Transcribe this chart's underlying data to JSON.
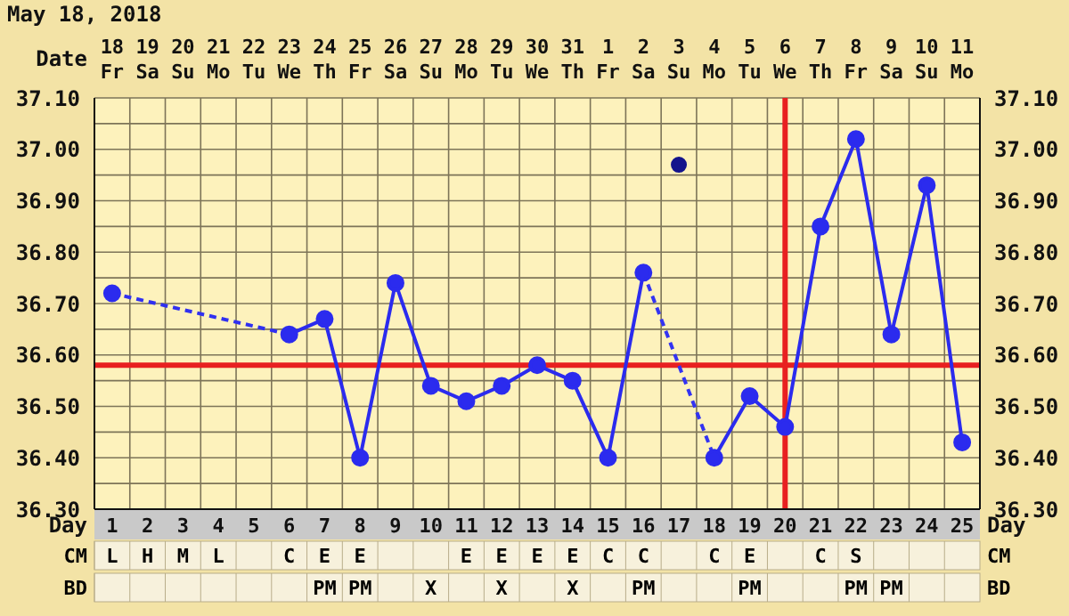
{
  "chart_data": {
    "type": "line",
    "title": "May 18, 2018",
    "xlabel": "Date",
    "x2label": "Day",
    "categories": [
      "18 Fr",
      "19 Sa",
      "20 Su",
      "21 Mo",
      "22 Tu",
      "23 We",
      "24 Th",
      "25 Fr",
      "26 Sa",
      "27 Su",
      "28 Mo",
      "29 Tu",
      "30 We",
      "31 Th",
      "1 Fr",
      "2 Sa",
      "3 Su",
      "4 Mo",
      "5 Tu",
      "6 We",
      "7 Th",
      "8 Fr",
      "9 Sa",
      "10 Su",
      "11 Mo"
    ],
    "series": [
      {
        "color": "#2b2bee",
        "values": [
          36.72,
          null,
          null,
          null,
          null,
          36.64,
          36.67,
          36.4,
          36.74,
          36.54,
          36.51,
          36.54,
          36.58,
          36.55,
          36.4,
          36.76,
          null,
          36.4,
          36.52,
          36.46,
          36.85,
          37.02,
          36.64,
          36.93,
          36.43
        ]
      },
      {
        "color": "#3030f0",
        "line_style": "dashed",
        "marker": "none",
        "x": [
          "18 Fr",
          "23 We"
        ],
        "values": [
          36.72,
          36.64
        ]
      },
      {
        "color": "#3333f2",
        "line_style": "dashed",
        "marker": "none",
        "x": [
          "2 Sa",
          "4 Mo"
        ],
        "values": [
          36.76,
          36.4
        ]
      },
      {
        "type": "scatter",
        "color": "#14148c",
        "values": [
          null,
          null,
          null,
          null,
          null,
          null,
          null,
          null,
          null,
          null,
          null,
          null,
          null,
          null,
          null,
          null,
          36.97,
          null,
          null,
          null,
          null,
          null,
          null,
          null,
          null
        ]
      }
    ],
    "marker": "circle",
    "line_style": "solid",
    "grid": true,
    "ylim": [
      36.3,
      37.1
    ],
    "yticks": [
      {
        "value": 36.3,
        "label": "36.30"
      },
      {
        "value": 36.35,
        "label": null
      },
      {
        "value": 36.4,
        "label": "36.40"
      },
      {
        "value": 36.45,
        "label": null
      },
      {
        "value": 36.5,
        "label": "36.50"
      },
      {
        "value": 36.55,
        "label": null
      },
      {
        "value": 36.6,
        "label": "36.60"
      },
      {
        "value": 36.65,
        "label": null
      },
      {
        "value": 36.7,
        "label": "36.70"
      },
      {
        "value": 36.75,
        "label": null
      },
      {
        "value": 36.8,
        "label": "36.80"
      },
      {
        "value": 36.85,
        "label": null
      },
      {
        "value": 36.9,
        "label": "36.90"
      },
      {
        "value": 36.95,
        "label": null
      },
      {
        "value": 37.0,
        "label": "37.00"
      },
      {
        "value": 37.05,
        "label": null
      },
      {
        "value": 37.1,
        "label": "37.10"
      }
    ],
    "y2lim": [
      36.3,
      37.1
    ],
    "y2ticks": [
      {
        "value": 36.3,
        "label": "36.30"
      },
      {
        "value": 36.4,
        "label": "36.40"
      },
      {
        "value": 36.5,
        "label": "36.50"
      },
      {
        "value": 36.6,
        "label": "36.60"
      },
      {
        "value": 36.7,
        "label": "36.70"
      },
      {
        "value": 36.8,
        "label": "36.80"
      },
      {
        "value": 36.9,
        "label": "36.90"
      },
      {
        "value": 37.0,
        "label": "37.00"
      },
      {
        "value": 37.1,
        "label": "37.10"
      }
    ],
    "x2lim": [
      0.5,
      25.5
    ],
    "x2ticks": [
      1,
      2,
      3,
      4,
      5,
      6,
      7,
      8,
      9,
      10,
      11,
      12,
      13,
      14,
      15,
      16,
      17,
      18,
      19,
      20,
      21,
      22,
      23,
      24,
      25
    ],
    "ref_lines": [
      {
        "axis": "y",
        "value": 36.58,
        "color": "#e82020"
      },
      {
        "axis": "x",
        "value": "6 We",
        "color": "#e82020"
      }
    ],
    "annotations": [
      "CM",
      "L",
      "H",
      "M",
      "L",
      null,
      "C",
      "E",
      "E",
      null,
      null,
      "E",
      "E",
      "E",
      "E",
      "C",
      "C",
      null,
      "C",
      "E",
      null,
      "C",
      "S",
      null,
      null,
      null,
      "BD",
      null,
      null,
      null,
      null,
      null,
      null,
      "PM",
      "PM",
      null,
      "X",
      null,
      "X",
      null,
      "X",
      null,
      "PM",
      null,
      null,
      "PM",
      null,
      null,
      "PM",
      "PM",
      null,
      null
    ]
  }
}
